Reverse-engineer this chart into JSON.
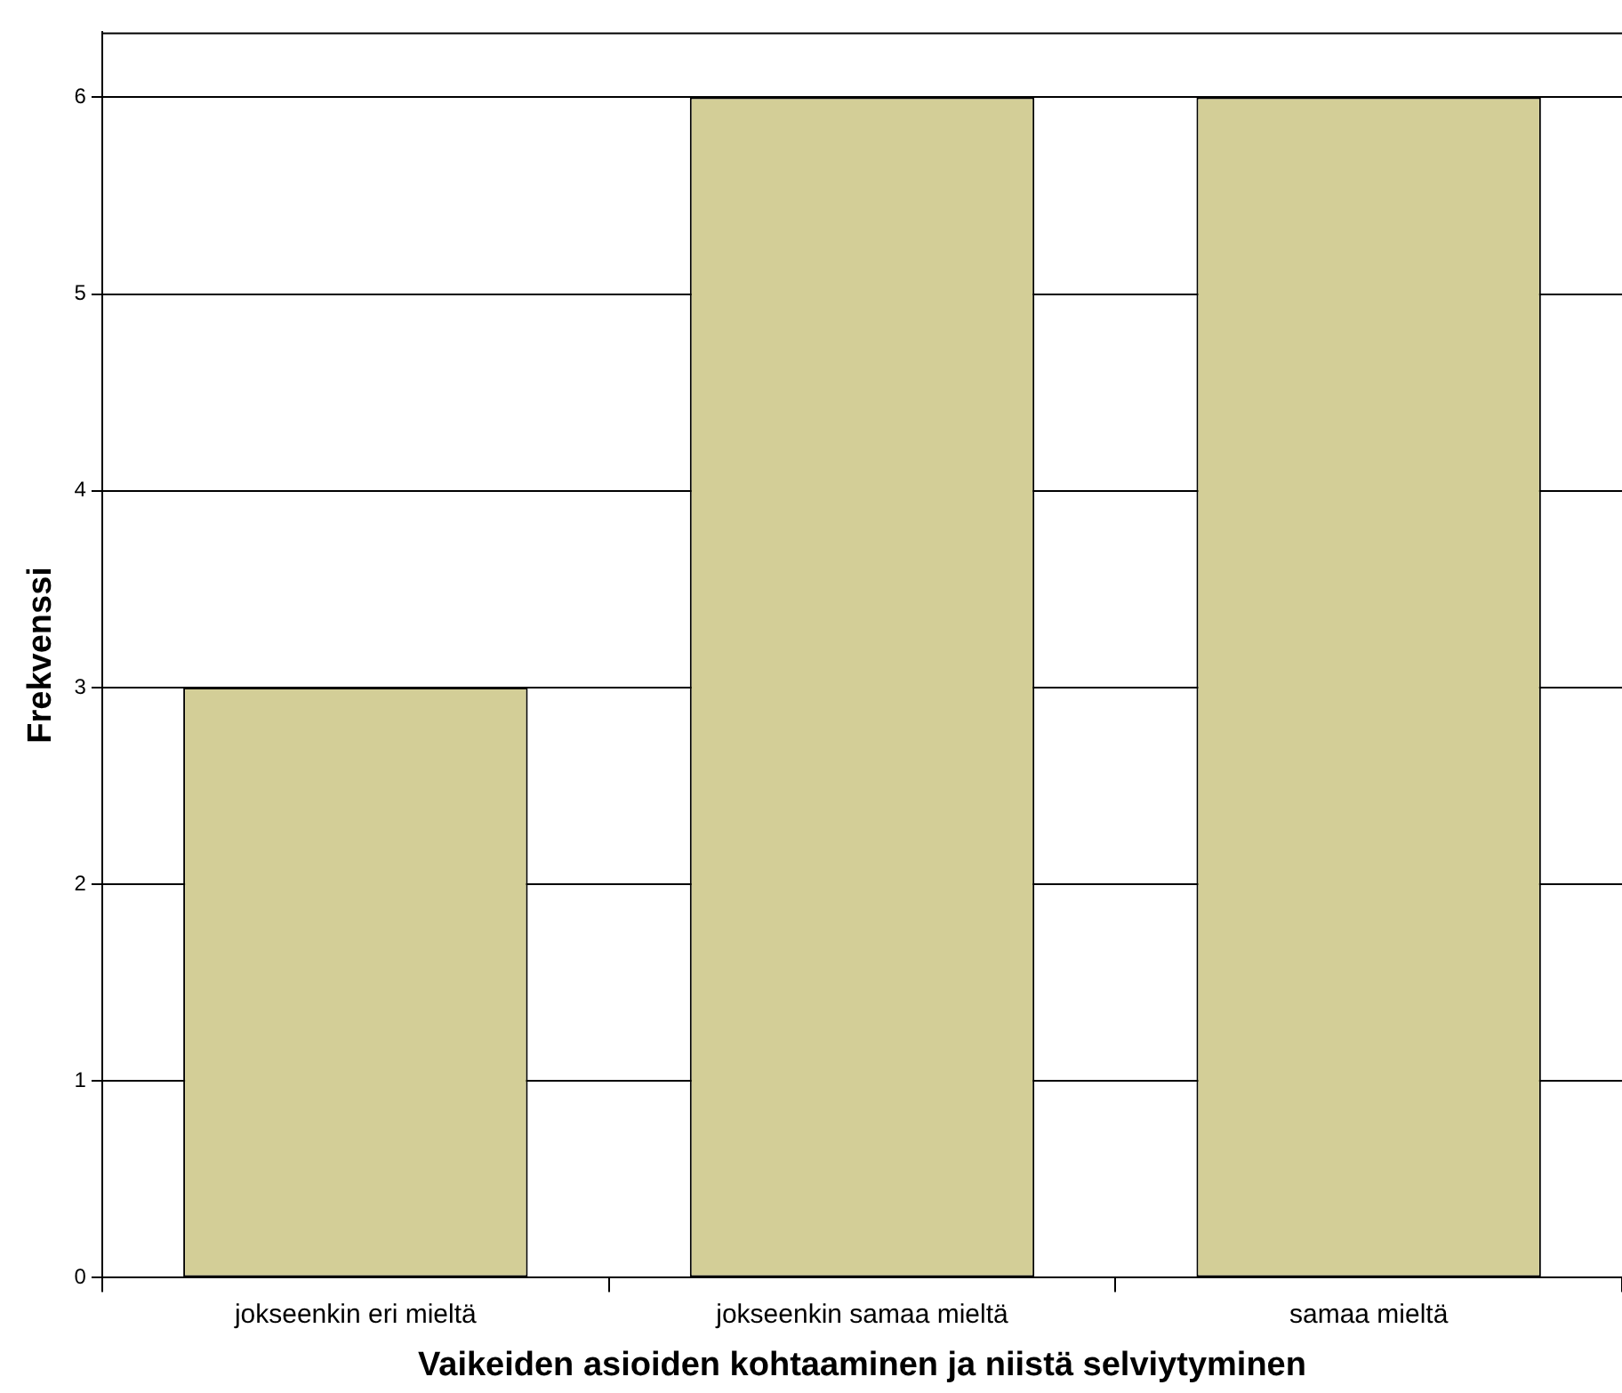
{
  "chart_data": {
    "type": "bar",
    "xlabel": "Vaikeiden asioiden kohtaaminen ja niistä selviytyminen",
    "ylabel": "Frekvenssi",
    "categories": [
      "jokseenkin eri mieltä",
      "jokseenkin samaa mieltä",
      "samaa mieltä"
    ],
    "values": [
      3,
      6,
      6
    ],
    "color": "#d3ce97",
    "ylim": [
      0,
      6.33
    ],
    "yticks": [
      0,
      1,
      2,
      3,
      4,
      5,
      6
    ],
    "grid": "y",
    "legend": false
  }
}
